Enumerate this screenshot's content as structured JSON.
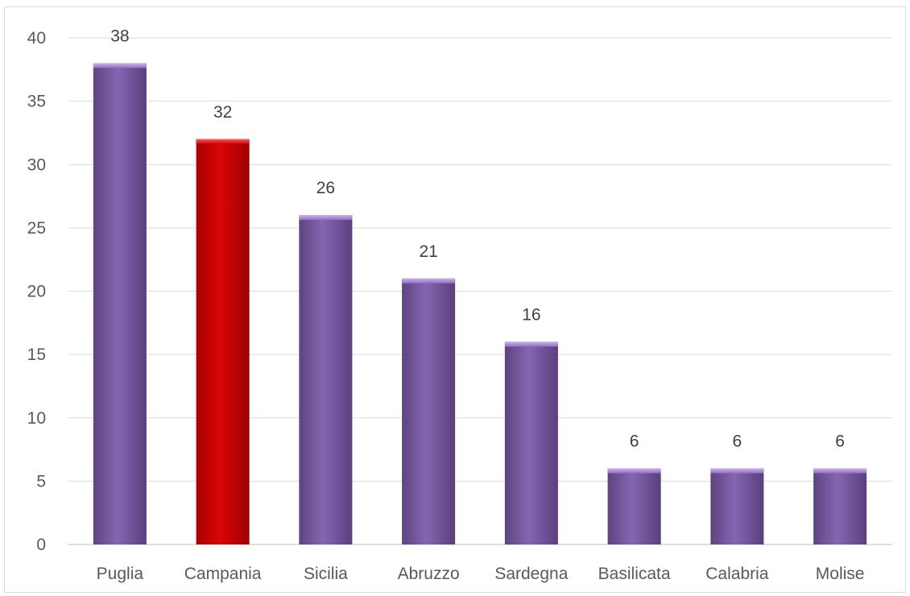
{
  "chart_data": {
    "type": "bar",
    "title": "",
    "xlabel": "",
    "ylabel": "",
    "categories": [
      "Puglia",
      "Campania",
      "Sicilia",
      "Abruzzo",
      "Sardegna",
      "Basilicata",
      "Calabria",
      "Molise"
    ],
    "values": [
      38,
      32,
      26,
      21,
      16,
      6,
      6,
      6
    ],
    "data_labels": [
      "38",
      "32",
      "26",
      "21",
      "16",
      "6",
      "6",
      "6"
    ],
    "ylim": [
      0,
      40
    ],
    "yticks": [
      0,
      5,
      10,
      15,
      20,
      25,
      30,
      35,
      40
    ],
    "ytick_labels": [
      "0",
      "5",
      "10",
      "15",
      "20",
      "25",
      "30",
      "35",
      "40"
    ],
    "grid": true,
    "legend": "none",
    "colors": {
      "default_bar": "#7b5aa6",
      "highlight_bar": "#c00000",
      "highlight_category": "Campania",
      "gridline": "#d9d9d9",
      "axis_text": "#595959"
    }
  }
}
